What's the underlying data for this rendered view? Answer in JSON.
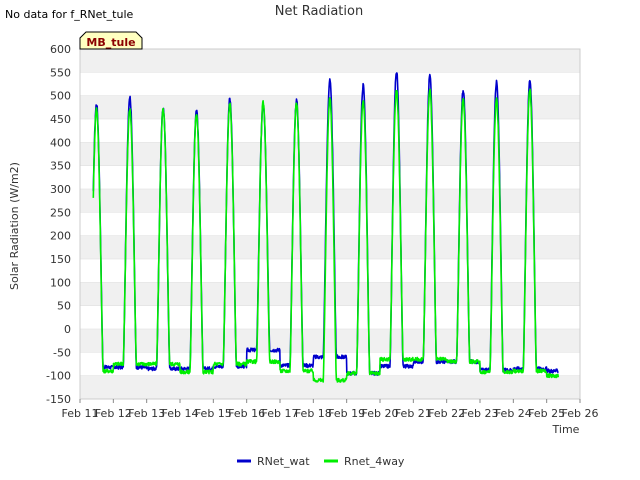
{
  "header": {
    "note": "No data for f_RNet_tule",
    "badge": "MB_tule"
  },
  "colors": {
    "band": "#f0f0f0",
    "grid": "#dddddd",
    "badge_fill": "#ffffc0",
    "badge_text": "#8b0000"
  },
  "chart_data": {
    "type": "line",
    "title": "Net Radiation",
    "xlabel": "Time",
    "ylabel": "Solar Radiation (W/m2)",
    "xlim": [
      11,
      26
    ],
    "ylim": [
      -150,
      600
    ],
    "x_ticks": [
      "Feb 11",
      "Feb 12",
      "Feb 13",
      "Feb 14",
      "Feb 15",
      "Feb 16",
      "Feb 17",
      "Feb 18",
      "Feb 19",
      "Feb 20",
      "Feb 21",
      "Feb 22",
      "Feb 23",
      "Feb 24",
      "Feb 25",
      "Feb 26"
    ],
    "y_ticks": [
      -150,
      -100,
      -50,
      0,
      50,
      100,
      150,
      200,
      250,
      300,
      350,
      400,
      450,
      500,
      550,
      600
    ],
    "grid": true,
    "legend_position": "bottom-center",
    "x_start": 11.4,
    "x_end": 25.35,
    "series": [
      {
        "name": "RNet_wat",
        "color": "#0000cc",
        "days": [
          {
            "day": 11,
            "night": -82,
            "peak": 482
          },
          {
            "day": 12,
            "night": -82,
            "peak": 498
          },
          {
            "day": 13,
            "night": -85,
            "peak": 475
          },
          {
            "day": 14,
            "night": -85,
            "peak": 470
          },
          {
            "day": 15,
            "night": -80,
            "peak": 492
          },
          {
            "day": 16,
            "night": -45,
            "peak": 480
          },
          {
            "day": 17,
            "night": -78,
            "peak": 490
          },
          {
            "day": 18,
            "night": -60,
            "peak": 532
          },
          {
            "day": 19,
            "night": -95,
            "peak": 522
          },
          {
            "day": 20,
            "night": -80,
            "peak": 552
          },
          {
            "day": 21,
            "night": -70,
            "peak": 543
          },
          {
            "day": 22,
            "night": -70,
            "peak": 513
          },
          {
            "day": 23,
            "night": -88,
            "peak": 528
          },
          {
            "day": 24,
            "night": -85,
            "peak": 535
          },
          {
            "day": 25,
            "night": -90,
            "peak": 0
          }
        ]
      },
      {
        "name": "Rnet_4way",
        "color": "#00ee00",
        "days": [
          {
            "day": 11,
            "night": -90,
            "peak": 472
          },
          {
            "day": 12,
            "night": -75,
            "peak": 470
          },
          {
            "day": 13,
            "night": -75,
            "peak": 470
          },
          {
            "day": 14,
            "night": -92,
            "peak": 462
          },
          {
            "day": 15,
            "night": -75,
            "peak": 482
          },
          {
            "day": 16,
            "night": -70,
            "peak": 487
          },
          {
            "day": 17,
            "night": -90,
            "peak": 485
          },
          {
            "day": 18,
            "night": -110,
            "peak": 495
          },
          {
            "day": 19,
            "night": -95,
            "peak": 490
          },
          {
            "day": 20,
            "night": -65,
            "peak": 512
          },
          {
            "day": 21,
            "night": -65,
            "peak": 512
          },
          {
            "day": 22,
            "night": -70,
            "peak": 492
          },
          {
            "day": 23,
            "night": -92,
            "peak": 492
          },
          {
            "day": 24,
            "night": -90,
            "peak": 512
          },
          {
            "day": 25,
            "night": -100,
            "peak": 0
          }
        ]
      }
    ]
  }
}
